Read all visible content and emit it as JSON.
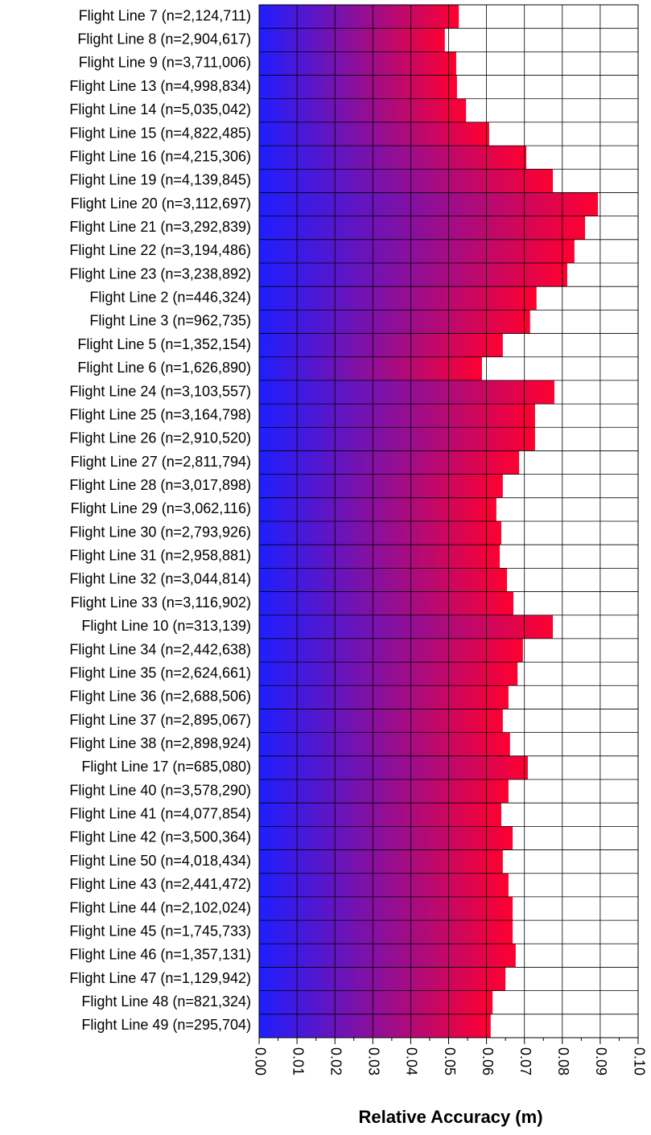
{
  "chart_data": {
    "type": "bar",
    "orientation": "horizontal",
    "x_label": "Relative Accuracy (m)",
    "categories": [
      "Flight Line 7 (n=2,124,711)",
      "Flight Line 8 (n=2,904,617)",
      "Flight Line 9 (n=3,711,006)",
      "Flight Line 13 (n=4,998,834)",
      "Flight Line 14 (n=5,035,042)",
      "Flight Line 15 (n=4,822,485)",
      "Flight Line 16 (n=4,215,306)",
      "Flight Line 19 (n=4,139,845)",
      "Flight Line 20 (n=3,112,697)",
      "Flight Line 21 (n=3,292,839)",
      "Flight Line 22 (n=3,194,486)",
      "Flight Line 23 (n=3,238,892)",
      "Flight Line 2 (n=446,324)",
      "Flight Line 3 (n=962,735)",
      "Flight Line 5 (n=1,352,154)",
      "Flight Line 6 (n=1,626,890)",
      "Flight Line 24 (n=3,103,557)",
      "Flight Line 25 (n=3,164,798)",
      "Flight Line 26 (n=2,910,520)",
      "Flight Line 27 (n=2,811,794)",
      "Flight Line 28 (n=3,017,898)",
      "Flight Line 29 (n=3,062,116)",
      "Flight Line 30 (n=2,793,926)",
      "Flight Line 31 (n=2,958,881)",
      "Flight Line 32 (n=3,044,814)",
      "Flight Line 33 (n=3,116,902)",
      "Flight Line 10 (n=313,139)",
      "Flight Line 34 (n=2,442,638)",
      "Flight Line 35 (n=2,624,661)",
      "Flight Line 36 (n=2,688,506)",
      "Flight Line 37 (n=2,895,067)",
      "Flight Line 38 (n=2,898,924)",
      "Flight Line 17 (n=685,080)",
      "Flight Line 40 (n=3,578,290)",
      "Flight Line 41 (n=4,077,854)",
      "Flight Line 42 (n=3,500,364)",
      "Flight Line 50 (n=4,018,434)",
      "Flight Line 43 (n=2,441,472)",
      "Flight Line 44 (n=2,102,024)",
      "Flight Line 45 (n=1,745,733)",
      "Flight Line 46 (n=1,357,131)",
      "Flight Line 47 (n=1,129,942)",
      "Flight Line 48 (n=821,324)",
      "Flight Line 49 (n=295,704)"
    ],
    "values": [
      0.0527,
      0.049,
      0.052,
      0.0522,
      0.0546,
      0.0607,
      0.0705,
      0.0775,
      0.0894,
      0.086,
      0.0832,
      0.0813,
      0.0732,
      0.0715,
      0.0643,
      0.0588,
      0.0779,
      0.0728,
      0.0728,
      0.0686,
      0.0643,
      0.0626,
      0.0639,
      0.0635,
      0.0654,
      0.0671,
      0.0775,
      0.0696,
      0.0682,
      0.0658,
      0.0643,
      0.0662,
      0.0709,
      0.0658,
      0.0639,
      0.0669,
      0.0643,
      0.0658,
      0.0669,
      0.0669,
      0.0677,
      0.065,
      0.0616,
      0.0611
    ],
    "gradient": [
      "#1e1eff",
      "#ff0030"
    ],
    "xlim": [
      0,
      0.1
    ],
    "xticks": [
      {
        "value": 0,
        "label": "0.00"
      },
      {
        "value": 0.01,
        "label": "0.01"
      },
      {
        "value": 0.02,
        "label": "0.02"
      },
      {
        "value": 0.03,
        "label": "0.03"
      },
      {
        "value": 0.04,
        "label": "0.04"
      },
      {
        "value": 0.05,
        "label": "0.05"
      },
      {
        "value": 0.06,
        "label": "0.06"
      },
      {
        "value": 0.07,
        "label": "0.07"
      },
      {
        "value": 0.08,
        "label": "0.08"
      },
      {
        "value": 0.09,
        "label": "0.09"
      },
      {
        "value": 0.1,
        "label": "0.10"
      }
    ],
    "grid": true
  }
}
